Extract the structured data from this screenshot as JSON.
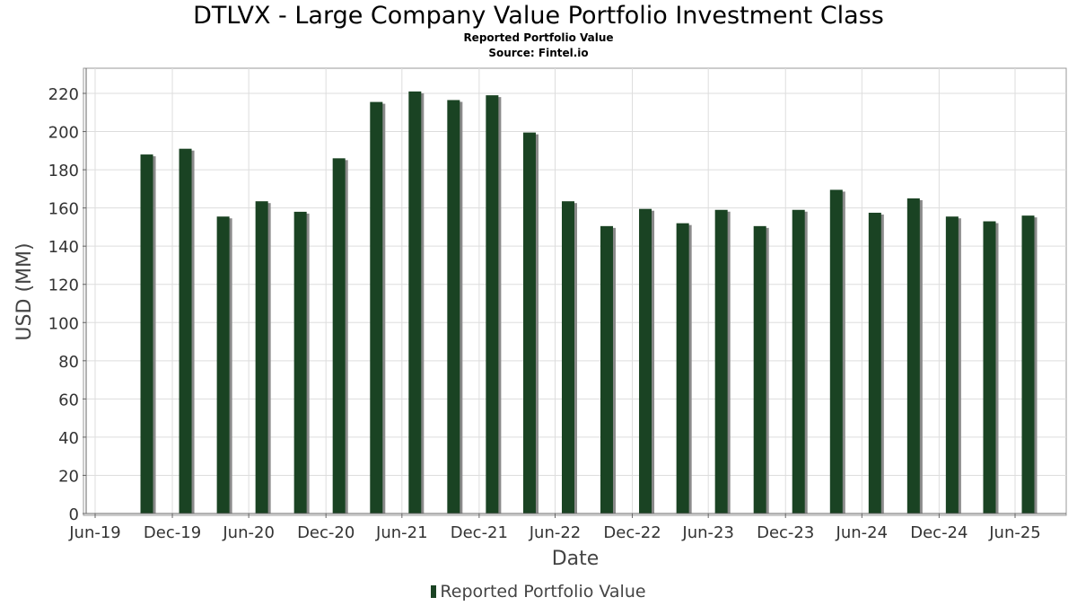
{
  "title": "DTLVX - Large Company Value Portfolio Investment Class",
  "subtitle": "Reported Portfolio Value",
  "source": "Source: Fintel.io",
  "colors": {
    "bar": "#1a4323",
    "bar_shadow": "#8a8a8a",
    "grid": "#dddddd",
    "axis": "#666666",
    "tick_text": "#333333"
  },
  "chart_data": {
    "type": "bar",
    "title": "DTLVX - Large Company Value Portfolio Investment Class",
    "subtitle": "Reported Portfolio Value",
    "xlabel": "Date",
    "ylabel": "USD (MM)",
    "ylim": [
      0,
      230
    ],
    "yticks": [
      0,
      20,
      40,
      60,
      80,
      100,
      120,
      140,
      160,
      180,
      200,
      220
    ],
    "xlim": [
      "2019-06-01",
      "2025-09-30"
    ],
    "xticks": [
      {
        "date": "2019-06-30",
        "label": "Jun-19"
      },
      {
        "date": "2019-12-31",
        "label": "Dec-19"
      },
      {
        "date": "2020-06-30",
        "label": "Jun-20"
      },
      {
        "date": "2020-12-31",
        "label": "Dec-20"
      },
      {
        "date": "2021-06-30",
        "label": "Jun-21"
      },
      {
        "date": "2021-12-31",
        "label": "Dec-21"
      },
      {
        "date": "2022-06-30",
        "label": "Jun-22"
      },
      {
        "date": "2022-12-31",
        "label": "Dec-22"
      },
      {
        "date": "2023-06-30",
        "label": "Jun-23"
      },
      {
        "date": "2023-12-31",
        "label": "Dec-23"
      },
      {
        "date": "2024-06-30",
        "label": "Jun-24"
      },
      {
        "date": "2024-12-31",
        "label": "Dec-24"
      },
      {
        "date": "2025-06-30",
        "label": "Jun-25"
      }
    ],
    "grid": true,
    "legend_position": "bottom",
    "series": [
      {
        "name": "Reported Portfolio Value",
        "x": [
          "2019-10-31",
          "2020-01-31",
          "2020-04-30",
          "2020-07-31",
          "2020-10-31",
          "2021-01-31",
          "2021-04-30",
          "2021-07-31",
          "2021-10-31",
          "2022-01-31",
          "2022-04-30",
          "2022-07-31",
          "2022-10-31",
          "2023-01-31",
          "2023-04-30",
          "2023-07-31",
          "2023-10-31",
          "2024-01-31",
          "2024-04-30",
          "2024-07-31",
          "2024-10-31",
          "2025-01-31",
          "2025-04-30",
          "2025-07-31"
        ],
        "values": [
          188,
          191,
          155.5,
          163.5,
          158,
          186,
          215.5,
          221,
          216.5,
          219,
          199.5,
          163.5,
          150.5,
          159.5,
          152,
          159,
          150.5,
          159,
          169.5,
          157.5,
          165,
          155.5,
          153,
          156
        ]
      }
    ]
  }
}
